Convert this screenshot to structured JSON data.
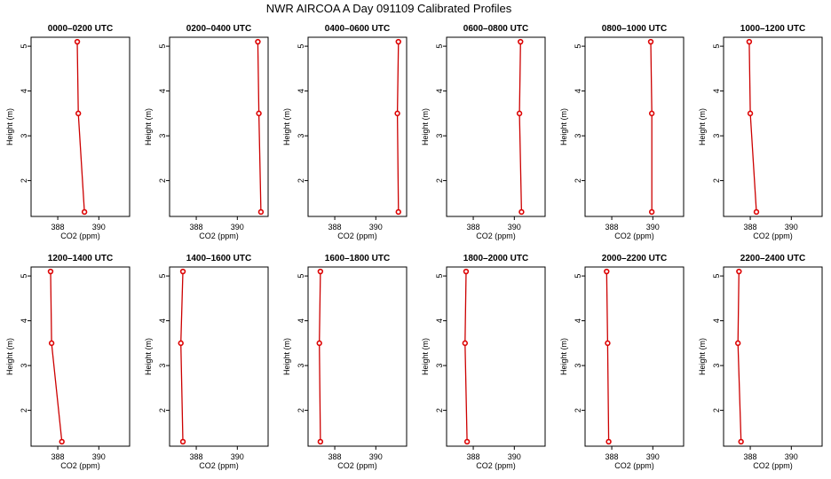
{
  "title": "NWR AIRCOA A  Day 091109  Calibrated Profiles",
  "chart_data": {
    "type": "line",
    "layout": "grid 2x6 small multiples",
    "xlabel": "CO2 (ppm)",
    "ylabel": "Height (m)",
    "xlim": [
      386.7,
      391.5
    ],
    "ylim": [
      1.2,
      5.2
    ],
    "x_ticks": [
      388,
      390
    ],
    "y_ticks": [
      2,
      3,
      4,
      5
    ],
    "series_color": "#dd0000",
    "panels": [
      {
        "title": "0000–0200 UTC",
        "x": [
          389.3,
          389.0,
          388.95
        ],
        "y": [
          1.3,
          3.5,
          5.1
        ]
      },
      {
        "title": "0200–0400 UTC",
        "x": [
          391.15,
          391.05,
          391.0
        ],
        "y": [
          1.3,
          3.5,
          5.1
        ]
      },
      {
        "title": "0400–0600 UTC",
        "x": [
          391.1,
          391.05,
          391.1
        ],
        "y": [
          1.3,
          3.5,
          5.1
        ]
      },
      {
        "title": "0600–0800 UTC",
        "x": [
          390.35,
          390.25,
          390.3
        ],
        "y": [
          1.3,
          3.5,
          5.1
        ]
      },
      {
        "title": "0800–1000 UTC",
        "x": [
          389.95,
          389.95,
          389.9
        ],
        "y": [
          1.3,
          3.5,
          5.1
        ]
      },
      {
        "title": "1000–1200 UTC",
        "x": [
          388.3,
          388.0,
          387.95
        ],
        "y": [
          1.3,
          3.5,
          5.1
        ]
      },
      {
        "title": "1200–1400 UTC",
        "x": [
          388.2,
          387.7,
          387.65
        ],
        "y": [
          1.3,
          3.5,
          5.1
        ]
      },
      {
        "title": "1400–1600 UTC",
        "x": [
          387.35,
          387.25,
          387.35
        ],
        "y": [
          1.3,
          3.5,
          5.1
        ]
      },
      {
        "title": "1600–1800 UTC",
        "x": [
          387.3,
          387.25,
          387.3
        ],
        "y": [
          1.3,
          3.5,
          5.1
        ]
      },
      {
        "title": "1800–2000 UTC",
        "x": [
          387.7,
          387.6,
          387.65
        ],
        "y": [
          1.3,
          3.5,
          5.1
        ]
      },
      {
        "title": "2000–2200 UTC",
        "x": [
          387.85,
          387.8,
          387.75
        ],
        "y": [
          1.3,
          3.5,
          5.1
        ]
      },
      {
        "title": "2200–2400 UTC",
        "x": [
          387.55,
          387.4,
          387.45
        ],
        "y": [
          1.3,
          3.5,
          5.1
        ]
      }
    ]
  }
}
